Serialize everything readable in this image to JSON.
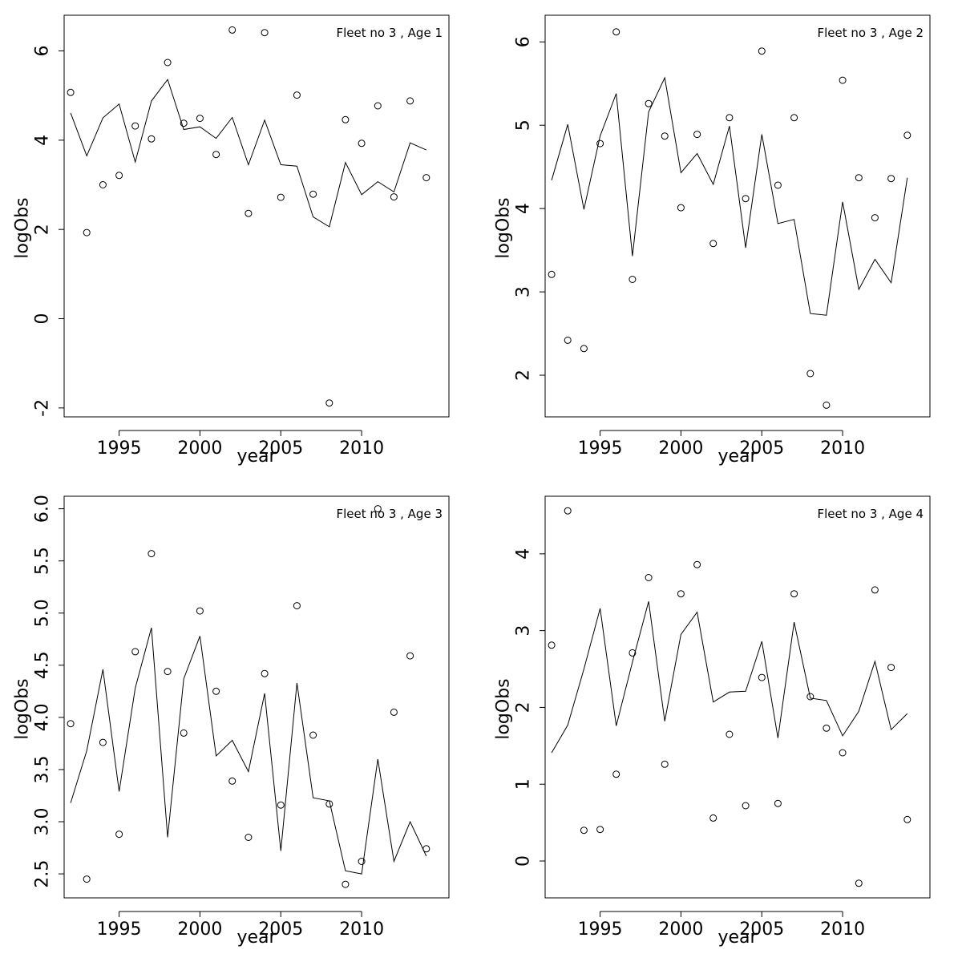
{
  "chart_data": [
    {
      "type": "line",
      "title": "Fleet no 3 , Age 1",
      "xlabel": "year",
      "ylabel": "logObs",
      "xlim": [
        1991.6,
        2015.4
      ],
      "ylim": [
        -2.2,
        6.8
      ],
      "xticks": [
        "1995",
        "2000",
        "2005",
        "2010"
      ],
      "yticks": [
        "-2",
        "0",
        "2",
        "4",
        "6"
      ],
      "years": [
        1992,
        1993,
        1994,
        1995,
        1996,
        1997,
        1998,
        1999,
        2000,
        2001,
        2002,
        2003,
        2004,
        2005,
        2006,
        2007,
        2008,
        2009,
        2010,
        2011,
        2012,
        2013,
        2014
      ],
      "series": [
        {
          "kind": "points",
          "values": [
            5.07,
            1.93,
            3.0,
            3.21,
            4.32,
            4.03,
            5.74,
            4.38,
            4.49,
            3.68,
            6.47,
            2.36,
            6.41,
            2.72,
            5.01,
            2.79,
            -1.89,
            4.46,
            3.93,
            4.77,
            2.73,
            4.88,
            3.16
          ]
        },
        {
          "kind": "line",
          "values": [
            4.61,
            3.65,
            4.5,
            4.81,
            3.51,
            4.88,
            5.36,
            4.24,
            4.3,
            4.04,
            4.51,
            3.45,
            4.45,
            3.45,
            3.42,
            2.28,
            2.06,
            3.5,
            2.78,
            3.07,
            2.84,
            3.94,
            3.78
          ]
        }
      ]
    },
    {
      "type": "line",
      "title": "Fleet no 3 , Age 2",
      "xlabel": "year",
      "ylabel": "logObs",
      "xlim": [
        1991.6,
        2015.4
      ],
      "ylim": [
        1.5,
        6.32
      ],
      "xticks": [
        "1995",
        "2000",
        "2005",
        "2010"
      ],
      "yticks": [
        "2",
        "3",
        "4",
        "5",
        "6"
      ],
      "years": [
        1992,
        1993,
        1994,
        1995,
        1996,
        1997,
        1998,
        1999,
        2000,
        2001,
        2002,
        2003,
        2004,
        2005,
        2006,
        2007,
        2008,
        2009,
        2010,
        2011,
        2012,
        2013,
        2014
      ],
      "series": [
        {
          "kind": "points",
          "values": [
            3.21,
            2.42,
            2.32,
            4.78,
            6.12,
            3.15,
            5.26,
            4.87,
            4.01,
            4.89,
            3.58,
            5.09,
            4.12,
            5.89,
            4.28,
            5.09,
            2.02,
            1.64,
            5.54,
            4.37,
            3.89,
            4.36,
            4.88
          ]
        },
        {
          "kind": "line",
          "values": [
            4.34,
            5.01,
            3.99,
            4.87,
            5.38,
            3.43,
            5.16,
            5.57,
            4.43,
            4.66,
            4.29,
            4.99,
            3.53,
            4.89,
            3.82,
            3.87,
            2.74,
            2.72,
            4.08,
            3.03,
            3.39,
            3.11,
            4.37
          ]
        }
      ]
    },
    {
      "type": "line",
      "title": "Fleet no 3 , Age 3",
      "xlabel": "year",
      "ylabel": "logObs",
      "xlim": [
        1991.6,
        2015.4
      ],
      "ylim": [
        2.27,
        6.12
      ],
      "xticks": [
        "1995",
        "2000",
        "2005",
        "2010"
      ],
      "yticks": [
        "2.5",
        "3.0",
        "3.5",
        "4.0",
        "4.5",
        "5.0",
        "5.5",
        "6.0"
      ],
      "years": [
        1992,
        1993,
        1994,
        1995,
        1996,
        1997,
        1998,
        1999,
        2000,
        2001,
        2002,
        2003,
        2004,
        2005,
        2006,
        2007,
        2008,
        2009,
        2010,
        2011,
        2012,
        2013,
        2014
      ],
      "series": [
        {
          "kind": "points",
          "values": [
            3.94,
            2.45,
            3.76,
            2.88,
            4.63,
            5.57,
            4.44,
            3.85,
            5.02,
            4.25,
            3.39,
            2.85,
            4.42,
            3.16,
            5.07,
            3.83,
            3.17,
            2.4,
            2.62,
            6.0,
            4.05,
            4.59,
            2.74
          ]
        },
        {
          "kind": "line",
          "values": [
            3.18,
            3.68,
            4.46,
            3.29,
            4.28,
            4.86,
            2.85,
            4.37,
            4.78,
            3.63,
            3.78,
            3.48,
            4.23,
            2.72,
            4.33,
            3.23,
            3.2,
            2.53,
            2.5,
            3.6,
            2.62,
            3.0,
            2.67
          ]
        }
      ]
    },
    {
      "type": "line",
      "title": "Fleet no 3 , Age 4",
      "xlabel": "year",
      "ylabel": "logObs",
      "xlim": [
        1991.6,
        2015.4
      ],
      "ylim": [
        -0.48,
        4.75
      ],
      "xticks": [
        "1995",
        "2000",
        "2005",
        "2010"
      ],
      "yticks": [
        "0",
        "1",
        "2",
        "3",
        "4"
      ],
      "years": [
        1992,
        1993,
        1994,
        1995,
        1996,
        1997,
        1998,
        1999,
        2000,
        2001,
        2002,
        2003,
        2004,
        2005,
        2006,
        2007,
        2008,
        2009,
        2010,
        2011,
        2012,
        2013,
        2014
      ],
      "series": [
        {
          "kind": "points",
          "values": [
            2.81,
            4.56,
            0.4,
            0.41,
            1.13,
            2.71,
            3.69,
            1.26,
            3.48,
            3.86,
            0.56,
            1.65,
            0.72,
            2.39,
            0.75,
            3.48,
            2.14,
            1.73,
            1.41,
            -0.29,
            3.53,
            2.52,
            0.54
          ]
        },
        {
          "kind": "line",
          "values": [
            1.41,
            1.77,
            2.5,
            3.29,
            1.76,
            2.59,
            3.38,
            1.82,
            2.95,
            3.24,
            2.07,
            2.2,
            2.21,
            2.86,
            1.6,
            3.11,
            2.12,
            2.09,
            1.63,
            1.95,
            2.6,
            1.71,
            1.92
          ]
        }
      ]
    }
  ]
}
